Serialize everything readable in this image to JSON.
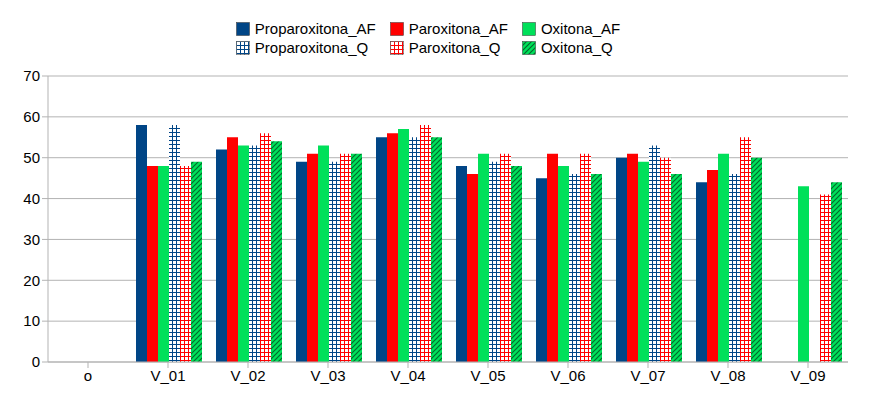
{
  "chart_data": {
    "type": "bar",
    "categories": [
      "o",
      "V_01",
      "V_02",
      "V_03",
      "V_04",
      "V_05",
      "V_06",
      "V_07",
      "V_08",
      "V_09"
    ],
    "series": [
      {
        "name": "Proparoxitona_AF",
        "color": "#004586",
        "values": [
          null,
          58,
          52,
          49,
          55,
          48,
          45,
          50,
          44,
          null
        ]
      },
      {
        "name": "Paroxitona_AF",
        "color": "#ff0000",
        "values": [
          null,
          48,
          55,
          51,
          56,
          46,
          51,
          51,
          47,
          null
        ]
      },
      {
        "name": "Oxitona_AF",
        "color": "#00e05a",
        "values": [
          null,
          48,
          53,
          53,
          57,
          51,
          48,
          49,
          51,
          43
        ]
      },
      {
        "name": "Proparoxitona_Q",
        "color": "#004586",
        "values": [
          null,
          58,
          53,
          49,
          55,
          49,
          46,
          53,
          46,
          null
        ]
      },
      {
        "name": "Paroxitona_Q",
        "color": "#ff0000",
        "values": [
          null,
          48,
          56,
          51,
          58,
          51,
          51,
          50,
          55,
          41
        ]
      },
      {
        "name": "Oxitona_Q",
        "color": "#00e05a",
        "values": [
          null,
          49,
          54,
          51,
          55,
          48,
          46,
          46,
          50,
          44
        ]
      }
    ],
    "ylim": [
      0,
      70
    ],
    "yticks": [
      0,
      10,
      20,
      30,
      40,
      50,
      60,
      70
    ],
    "grid": true,
    "legend": "top"
  }
}
